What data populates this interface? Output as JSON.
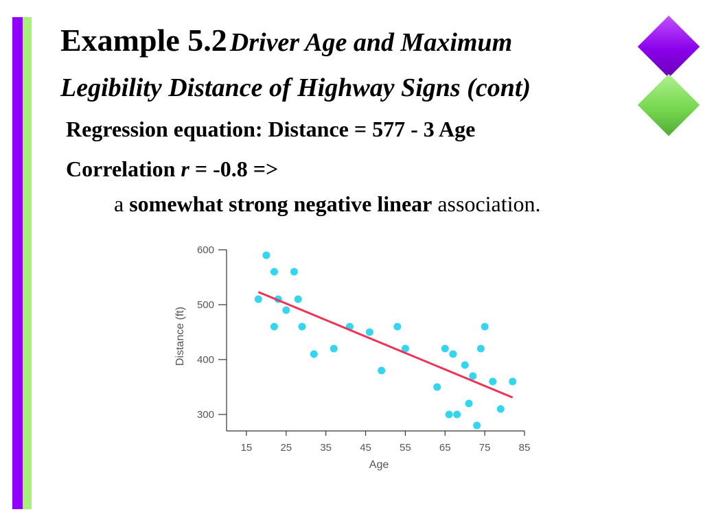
{
  "title": {
    "main": "Example 5.2",
    "sub_line1": "Driver Age and Maximum",
    "sub_line2": "Legibility Distance of Highway Signs (cont)"
  },
  "body": {
    "line1": "Regression equation: Distance = 577 - 3 Age",
    "line2_prefix": "Correlation ",
    "line2_r": "r",
    "line2_rest": " = -0.8 =>",
    "line3_a": "a ",
    "line3_bold": "somewhat strong negative linear",
    "line3_tail": " association."
  },
  "colors": {
    "accent_purple": "#8f00ff",
    "accent_green": "#a8f07a",
    "points": "#33d6ee",
    "regression_line": "#ee3355"
  },
  "chart_data": {
    "type": "scatter",
    "xlabel": "Age",
    "ylabel": "Distance (ft)",
    "xlim": [
      10,
      85
    ],
    "ylim": [
      270,
      600
    ],
    "xticks": [
      15,
      25,
      35,
      45,
      55,
      65,
      75,
      85
    ],
    "yticks": [
      300,
      400,
      500,
      600
    ],
    "points": [
      {
        "x": 18,
        "y": 510
      },
      {
        "x": 20,
        "y": 590
      },
      {
        "x": 22,
        "y": 560
      },
      {
        "x": 22,
        "y": 460
      },
      {
        "x": 23,
        "y": 510
      },
      {
        "x": 25,
        "y": 490
      },
      {
        "x": 27,
        "y": 560
      },
      {
        "x": 28,
        "y": 510
      },
      {
        "x": 29,
        "y": 460
      },
      {
        "x": 32,
        "y": 410
      },
      {
        "x": 37,
        "y": 420
      },
      {
        "x": 41,
        "y": 460
      },
      {
        "x": 46,
        "y": 450
      },
      {
        "x": 49,
        "y": 380
      },
      {
        "x": 53,
        "y": 460
      },
      {
        "x": 55,
        "y": 420
      },
      {
        "x": 63,
        "y": 350
      },
      {
        "x": 65,
        "y": 420
      },
      {
        "x": 66,
        "y": 300
      },
      {
        "x": 67,
        "y": 410
      },
      {
        "x": 68,
        "y": 300
      },
      {
        "x": 70,
        "y": 390
      },
      {
        "x": 71,
        "y": 320
      },
      {
        "x": 72,
        "y": 370
      },
      {
        "x": 73,
        "y": 280
      },
      {
        "x": 74,
        "y": 420
      },
      {
        "x": 75,
        "y": 460
      },
      {
        "x": 77,
        "y": 360
      },
      {
        "x": 79,
        "y": 310
      },
      {
        "x": 82,
        "y": 360
      }
    ],
    "regression": {
      "intercept": 577,
      "slope": -3,
      "x_range": [
        18,
        82
      ]
    },
    "grid": false
  }
}
